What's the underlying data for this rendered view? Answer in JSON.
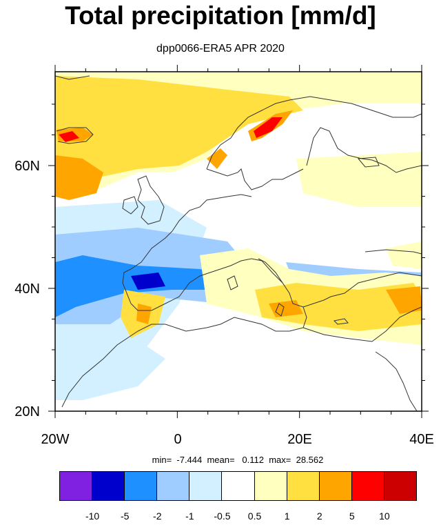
{
  "title": "Total precipitation [mm/d]",
  "subtitle": "dpp0066-ERA5 APR 2020",
  "axes": {
    "y_ticks": [
      "60N",
      "40N",
      "20N"
    ],
    "x_ticks": [
      "20W",
      "0",
      "20E",
      "40E"
    ]
  },
  "stats": {
    "text": "min=  -7.444  mean=   0.112  max=  28.562",
    "min": -7.444,
    "mean": 0.112,
    "max": 28.562
  },
  "colorbar": {
    "colors": [
      "#8020E0",
      "#0000CC",
      "#1E90FF",
      "#A0CDFF",
      "#D2F0FF",
      "#FFFFFF",
      "#FFFFC0",
      "#FFE040",
      "#FFA500",
      "#FF0000",
      "#CC0000"
    ],
    "labels": [
      "-10",
      "-5",
      "-2",
      "-1",
      "-0.5",
      "0.5",
      "1",
      "2",
      "5",
      "10"
    ]
  },
  "map": {
    "lon_range": [
      -20,
      40
    ],
    "lat_range": [
      20,
      75
    ],
    "colors": {
      "very_wet_blue": "#0000CC",
      "wet_blue": "#1E90FF",
      "light_blue": "#A0CDFF",
      "pale_blue": "#D2F0FF",
      "pale_yellow": "#FFFFC0",
      "yellow": "#FFE040",
      "orange": "#FFA500",
      "red": "#FF0000",
      "dark_red": "#CC0000",
      "coastline": "#333333"
    }
  }
}
